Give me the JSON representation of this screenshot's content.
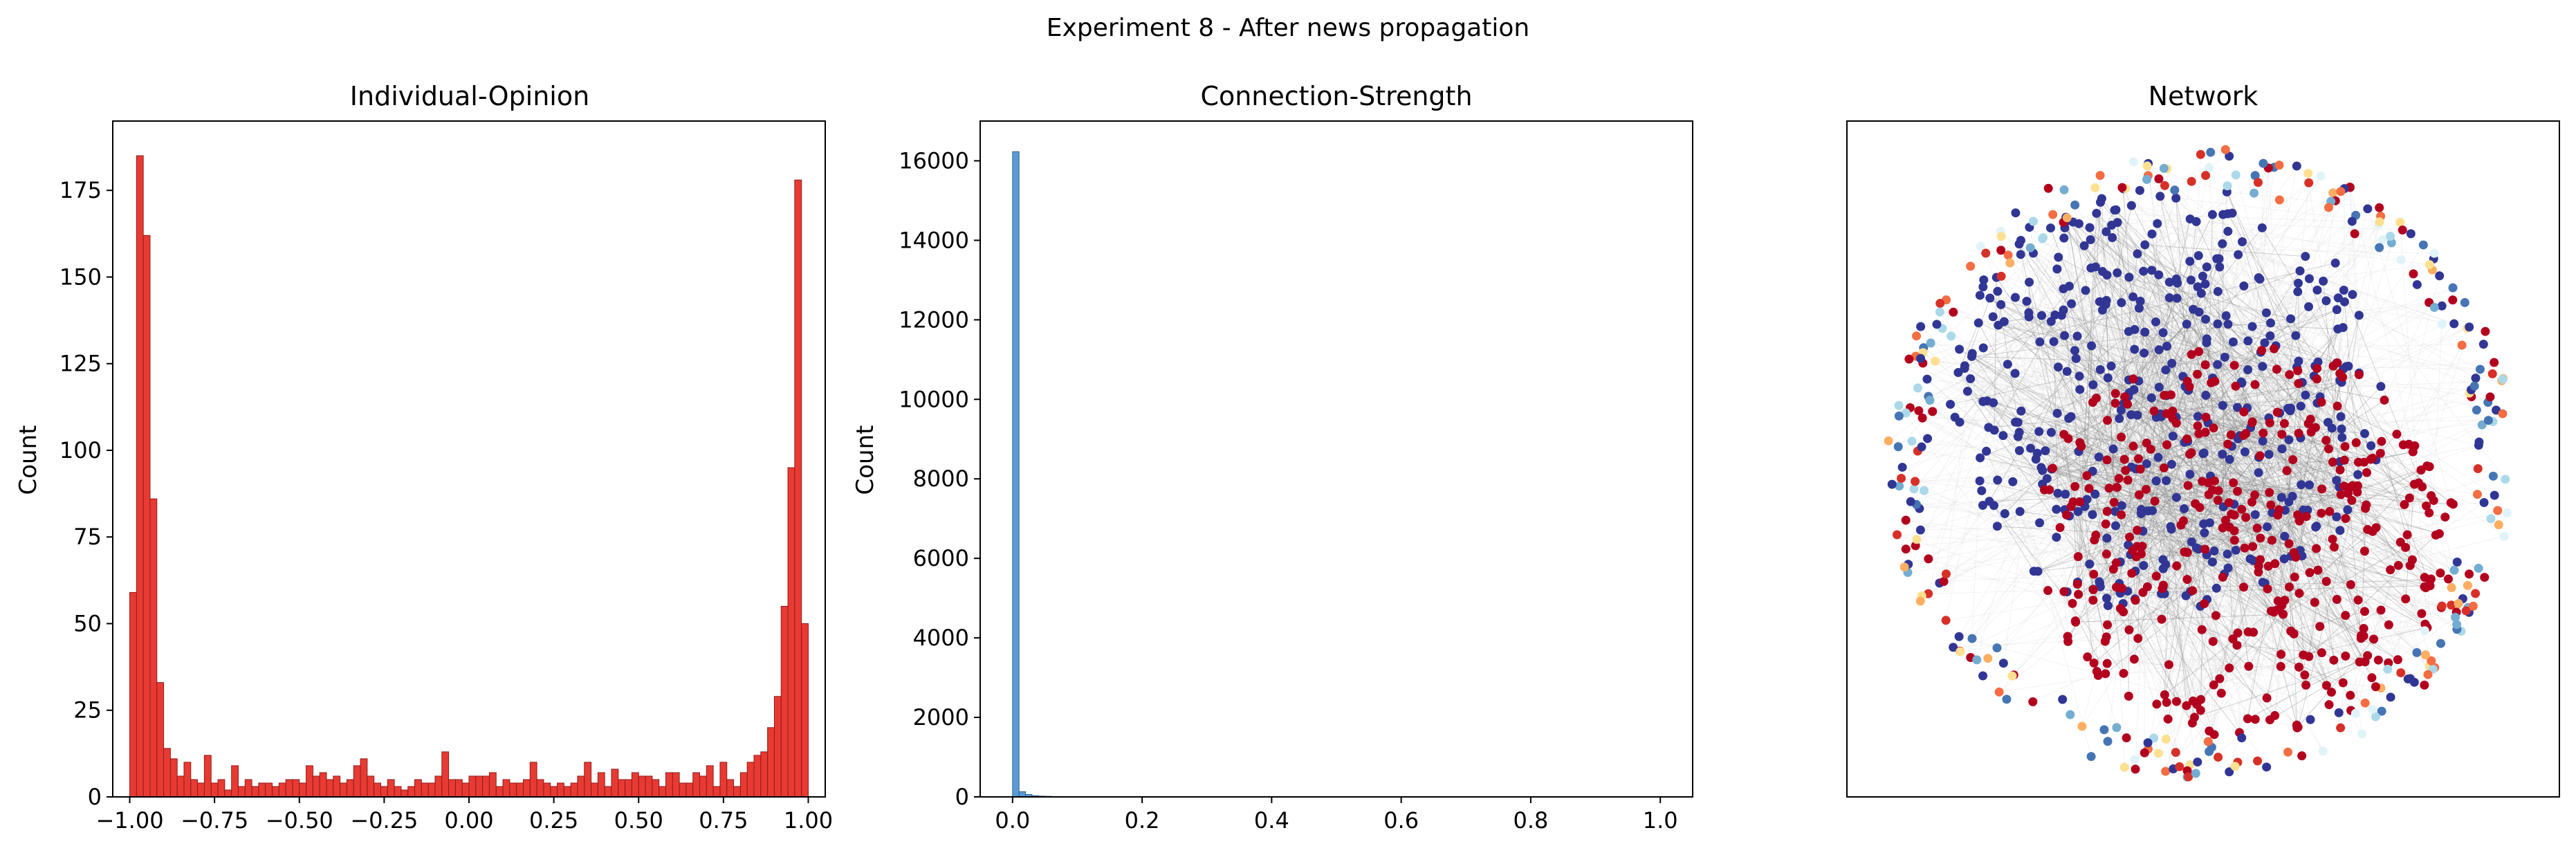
{
  "figure": {
    "suptitle": "Experiment 8 - After news propagation"
  },
  "chart_data": [
    {
      "type": "bar",
      "title": "Individual-Opinion",
      "xlabel": "",
      "ylabel": "Count",
      "xlim": [
        -1.05,
        1.05
      ],
      "ylim": [
        0,
        195
      ],
      "xticks": [
        "−1.00",
        "−0.75",
        "−0.50",
        "−0.25",
        "0.00",
        "0.25",
        "0.50",
        "0.75",
        "1.00"
      ],
      "xtick_values": [
        -1.0,
        -0.75,
        -0.5,
        -0.25,
        0.0,
        0.25,
        0.5,
        0.75,
        1.0
      ],
      "yticks": [
        "0",
        "25",
        "50",
        "75",
        "100",
        "125",
        "150",
        "175"
      ],
      "ytick_values": [
        0,
        25,
        50,
        75,
        100,
        125,
        150,
        175
      ],
      "grid": false,
      "bin_edges_range": [
        -1.0,
        1.0
      ],
      "bin_count": 100,
      "bar_color": "#e83a33",
      "edge_color": "#8c1d18",
      "values": [
        59,
        185,
        162,
        86,
        33,
        14,
        11,
        6,
        10,
        5,
        4,
        12,
        4,
        5,
        2,
        9,
        3,
        5,
        3,
        4,
        4,
        3,
        4,
        5,
        5,
        4,
        9,
        6,
        7,
        5,
        6,
        4,
        5,
        9,
        11,
        6,
        4,
        3,
        5,
        3,
        2,
        3,
        5,
        4,
        4,
        6,
        13,
        5,
        5,
        4,
        6,
        6,
        6,
        7,
        3,
        5,
        4,
        4,
        5,
        10,
        5,
        4,
        3,
        4,
        3,
        4,
        6,
        10,
        4,
        7,
        3,
        8,
        5,
        5,
        7,
        6,
        6,
        5,
        3,
        7,
        7,
        4,
        4,
        7,
        6,
        9,
        3,
        10,
        5,
        3,
        7,
        10,
        12,
        13,
        20,
        29,
        55,
        95,
        178,
        50
      ]
    },
    {
      "type": "bar",
      "title": "Connection-Strength",
      "xlabel": "",
      "ylabel": "Count",
      "xlim": [
        -0.05,
        1.05
      ],
      "ylim": [
        0,
        17000
      ],
      "xticks": [
        "0.0",
        "0.2",
        "0.4",
        "0.6",
        "0.8",
        "1.0"
      ],
      "xtick_values": [
        0.0,
        0.2,
        0.4,
        0.6,
        0.8,
        1.0
      ],
      "yticks": [
        "0",
        "2000",
        "4000",
        "6000",
        "8000",
        "10000",
        "12000",
        "14000",
        "16000"
      ],
      "ytick_values": [
        0,
        2000,
        4000,
        6000,
        8000,
        10000,
        12000,
        14000,
        16000
      ],
      "grid": false,
      "bin_edges_range": [
        0.0,
        1.0
      ],
      "bin_count": 100,
      "bar_color": "#5b9bd5",
      "edge_color": "#2f5f8a",
      "values": [
        16230,
        130,
        60,
        30,
        20,
        15,
        10,
        6,
        4,
        2,
        1,
        1,
        1,
        1,
        0,
        0,
        0,
        0,
        0,
        0,
        0,
        0,
        0,
        0,
        0,
        0,
        0,
        0,
        0,
        0,
        0,
        0,
        0,
        0,
        0,
        0,
        0,
        0,
        0,
        0,
        0,
        0,
        0,
        0,
        0,
        0,
        0,
        0,
        0,
        0,
        0,
        0,
        0,
        0,
        0,
        0,
        0,
        0,
        0,
        0,
        0,
        0,
        0,
        0,
        0,
        0,
        0,
        0,
        0,
        0,
        0,
        0,
        0,
        0,
        0,
        0,
        0,
        0,
        0,
        0,
        0,
        0,
        0,
        0,
        0,
        0,
        0,
        0,
        0,
        0,
        0,
        0,
        0,
        0,
        0,
        0,
        0,
        0,
        0,
        0
      ]
    },
    {
      "type": "scatter",
      "title": "Network",
      "xlabel": "",
      "ylabel": "",
      "axes_visible": false,
      "grid": false,
      "node_colors": {
        "strong_negative": "#313695",
        "strong_positive": "#b2001e",
        "mild_colors": [
          "#4575b4",
          "#74add1",
          "#abd9e9",
          "#e0f3f8",
          "#fee090",
          "#fdae61",
          "#f46d43",
          "#d73027"
        ]
      },
      "edge_color": "#c8c8c8"
    }
  ]
}
